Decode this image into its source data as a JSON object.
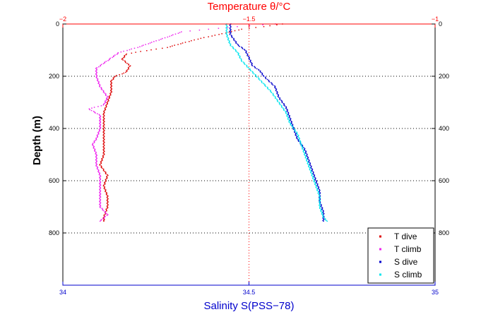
{
  "chart_data": {
    "type": "scatter",
    "top_axis": {
      "label": "Temperature θ/°C",
      "range": [
        -2,
        -1
      ],
      "ticks": [
        -2,
        -1.5,
        -1
      ],
      "tick_labels": [
        "−2",
        "−1.5",
        "−1"
      ],
      "color": "#ff0000"
    },
    "bottom_axis": {
      "label": "Salinity S(PSS−78)",
      "range": [
        34,
        35
      ],
      "ticks": [
        34,
        34.5,
        35
      ],
      "tick_labels": [
        "34",
        "34.5",
        "35"
      ],
      "color": "#0000cc"
    },
    "y_axis": {
      "label": "Depth (m)",
      "range": [
        0,
        1000
      ],
      "inverted": true,
      "ticks": [
        0,
        200,
        400,
        600,
        800
      ],
      "tick_labels": [
        "0",
        "200",
        "400",
        "600",
        "800"
      ]
    },
    "grid": true,
    "legend": {
      "placement": "bottom-right",
      "entries": [
        {
          "label": "T dive",
          "color": "#dd0000"
        },
        {
          "label": "T climb",
          "color": "#ee22ee"
        },
        {
          "label": "S dive",
          "color": "#0000cc"
        },
        {
          "label": "S climb",
          "color": "#00e5ee"
        }
      ]
    },
    "series": [
      {
        "axis": "top",
        "color": "#dd0000",
        "points": [
          [
            -1.41,
            0
          ],
          [
            -1.46,
            10
          ],
          [
            -1.52,
            20
          ],
          [
            -1.58,
            40
          ],
          [
            -1.63,
            55
          ],
          [
            -1.67,
            70
          ],
          [
            -1.72,
            90
          ],
          [
            -1.79,
            105
          ],
          [
            -1.83,
            115
          ],
          [
            -1.84,
            135
          ],
          [
            -1.82,
            160
          ],
          [
            -1.83,
            185
          ],
          [
            -1.86,
            200
          ],
          [
            -1.87,
            220
          ],
          [
            -1.87,
            260
          ],
          [
            -1.88,
            300
          ],
          [
            -1.89,
            340
          ],
          [
            -1.89,
            380
          ],
          [
            -1.89,
            420
          ],
          [
            -1.89,
            460
          ],
          [
            -1.89,
            500
          ],
          [
            -1.9,
            540
          ],
          [
            -1.88,
            580
          ],
          [
            -1.89,
            620
          ],
          [
            -1.88,
            660
          ],
          [
            -1.88,
            700
          ],
          [
            -1.89,
            740
          ],
          [
            -1.89,
            755
          ]
        ]
      },
      {
        "axis": "top",
        "color": "#ee22ee",
        "points": [
          [
            -1.43,
            0
          ],
          [
            -1.53,
            10
          ],
          [
            -1.61,
            20
          ],
          [
            -1.68,
            30
          ],
          [
            -1.72,
            50
          ],
          [
            -1.76,
            70
          ],
          [
            -1.8,
            90
          ],
          [
            -1.85,
            110
          ],
          [
            -1.88,
            140
          ],
          [
            -1.91,
            170
          ],
          [
            -1.91,
            200
          ],
          [
            -1.9,
            240
          ],
          [
            -1.88,
            280
          ],
          [
            -1.89,
            310
          ],
          [
            -1.93,
            325
          ],
          [
            -1.9,
            350
          ],
          [
            -1.9,
            400
          ],
          [
            -1.91,
            440
          ],
          [
            -1.92,
            460
          ],
          [
            -1.91,
            500
          ],
          [
            -1.91,
            540
          ],
          [
            -1.9,
            580
          ],
          [
            -1.9,
            620
          ],
          [
            -1.9,
            660
          ],
          [
            -1.9,
            700
          ],
          [
            -1.88,
            730
          ],
          [
            -1.9,
            755
          ]
        ]
      },
      {
        "axis": "bottom",
        "color": "#0000cc",
        "points": [
          [
            34.45,
            0
          ],
          [
            34.45,
            40
          ],
          [
            34.47,
            80
          ],
          [
            34.49,
            100
          ],
          [
            34.5,
            130
          ],
          [
            34.51,
            160
          ],
          [
            34.53,
            180
          ],
          [
            34.54,
            200
          ],
          [
            34.57,
            240
          ],
          [
            34.58,
            280
          ],
          [
            34.6,
            320
          ],
          [
            34.61,
            360
          ],
          [
            34.62,
            400
          ],
          [
            34.63,
            440
          ],
          [
            34.65,
            480
          ],
          [
            34.66,
            520
          ],
          [
            34.67,
            560
          ],
          [
            34.68,
            600
          ],
          [
            34.69,
            640
          ],
          [
            34.69,
            680
          ],
          [
            34.7,
            720
          ],
          [
            34.7,
            755
          ]
        ]
      },
      {
        "axis": "bottom",
        "color": "#00e5ee",
        "points": [
          [
            34.44,
            0
          ],
          [
            34.44,
            40
          ],
          [
            34.45,
            80
          ],
          [
            34.47,
            110
          ],
          [
            34.48,
            140
          ],
          [
            34.5,
            170
          ],
          [
            34.52,
            200
          ],
          [
            34.54,
            230
          ],
          [
            34.56,
            260
          ],
          [
            34.58,
            300
          ],
          [
            34.6,
            340
          ],
          [
            34.61,
            380
          ],
          [
            34.63,
            420
          ],
          [
            34.64,
            460
          ],
          [
            34.65,
            500
          ],
          [
            34.66,
            540
          ],
          [
            34.67,
            580
          ],
          [
            34.68,
            620
          ],
          [
            34.69,
            660
          ],
          [
            34.69,
            700
          ],
          [
            34.7,
            740
          ],
          [
            34.71,
            755
          ]
        ]
      }
    ]
  }
}
